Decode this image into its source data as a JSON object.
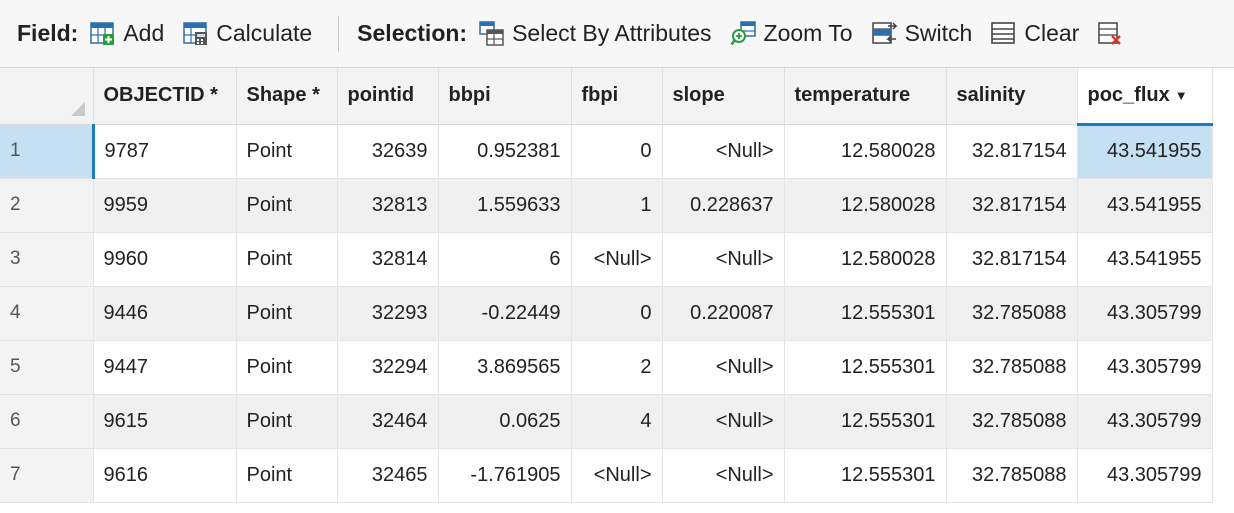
{
  "toolbar": {
    "field_label": "Field:",
    "add_label": "Add",
    "calculate_label": "Calculate",
    "selection_label": "Selection:",
    "select_by_attributes_label": "Select By Attributes",
    "zoom_to_label": "Zoom To",
    "switch_label": "Switch",
    "clear_label": "Clear"
  },
  "table": {
    "columns": [
      "OBJECTID *",
      "Shape *",
      "pointid",
      "bbpi",
      "fbpi",
      "slope",
      "temperature",
      "salinity",
      "poc_flux"
    ],
    "sort_indicator": "▼",
    "rows": [
      {
        "num": "1",
        "objectid": "9787",
        "shape": "Point",
        "pointid": "32639",
        "bbpi": "0.952381",
        "fbpi": "0",
        "slope": "<Null>",
        "temperature": "12.580028",
        "salinity": "32.817154",
        "poc_flux": "43.541955"
      },
      {
        "num": "2",
        "objectid": "9959",
        "shape": "Point",
        "pointid": "32813",
        "bbpi": "1.559633",
        "fbpi": "1",
        "slope": "0.228637",
        "temperature": "12.580028",
        "salinity": "32.817154",
        "poc_flux": "43.541955"
      },
      {
        "num": "3",
        "objectid": "9960",
        "shape": "Point",
        "pointid": "32814",
        "bbpi": "6",
        "fbpi": "<Null>",
        "slope": "<Null>",
        "temperature": "12.580028",
        "salinity": "32.817154",
        "poc_flux": "43.541955"
      },
      {
        "num": "4",
        "objectid": "9446",
        "shape": "Point",
        "pointid": "32293",
        "bbpi": "-0.22449",
        "fbpi": "0",
        "slope": "0.220087",
        "temperature": "12.555301",
        "salinity": "32.785088",
        "poc_flux": "43.305799"
      },
      {
        "num": "5",
        "objectid": "9447",
        "shape": "Point",
        "pointid": "32294",
        "bbpi": "3.869565",
        "fbpi": "2",
        "slope": "<Null>",
        "temperature": "12.555301",
        "salinity": "32.785088",
        "poc_flux": "43.305799"
      },
      {
        "num": "6",
        "objectid": "9615",
        "shape": "Point",
        "pointid": "32464",
        "bbpi": "0.0625",
        "fbpi": "4",
        "slope": "<Null>",
        "temperature": "12.555301",
        "salinity": "32.785088",
        "poc_flux": "43.305799"
      },
      {
        "num": "7",
        "objectid": "9616",
        "shape": "Point",
        "pointid": "32465",
        "bbpi": "-1.761905",
        "fbpi": "<Null>",
        "slope": "<Null>",
        "temperature": "12.555301",
        "salinity": "32.785088",
        "poc_flux": "43.305799"
      }
    ]
  },
  "colors": {
    "accent": "#1f7bbf",
    "selected_cell": "#c5e0f2",
    "header_bg": "#f3f3f3"
  }
}
